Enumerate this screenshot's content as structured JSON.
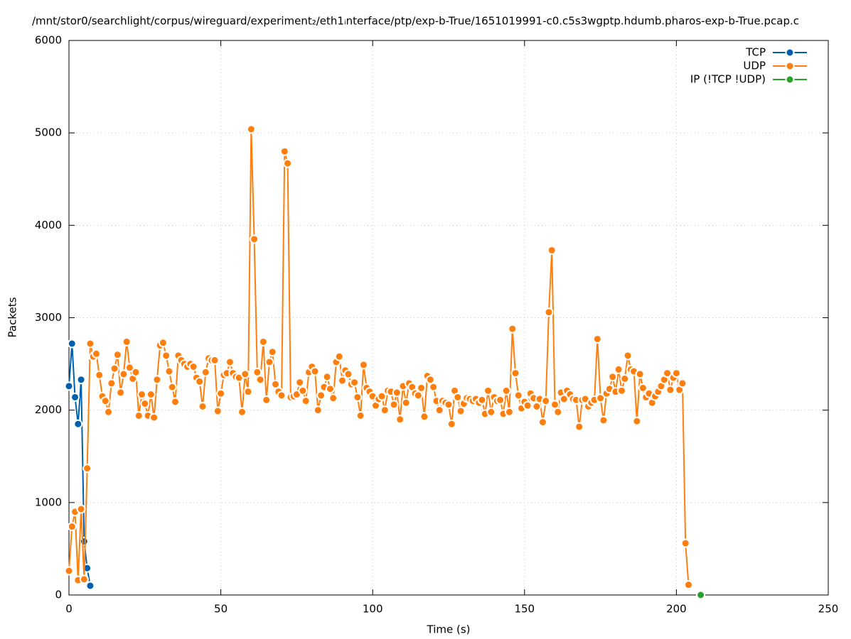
{
  "chart_data": {
    "type": "line",
    "title": "/mnt/stor0/searchlight/corpus/wireguard/experiment₂/eth1ᵢnterface/ptp/exp-b-True/1651019991-c0.c5s3wgptp.hdumb.pharos-exp-b-True.pcap.c",
    "x_label": "Time (s)",
    "y_label": "Packets",
    "xlim": [
      0,
      250
    ],
    "xticks": [
      0,
      50,
      100,
      150,
      200,
      250
    ],
    "ylim": [
      0,
      6000
    ],
    "yticks": [
      0,
      1000,
      2000,
      3000,
      4000,
      5000,
      6000
    ],
    "grid": true,
    "legend": "top-right",
    "series": [
      {
        "name": "TCP",
        "color": "#0060ad",
        "x": [
          0,
          1,
          2,
          3,
          4,
          5,
          6,
          7
        ],
        "values": [
          2260,
          2720,
          2140,
          1850,
          2330,
          580,
          290,
          100
        ]
      },
      {
        "name": "UDP",
        "color": "#ff7f0e",
        "x": [
          0,
          1,
          2,
          3,
          4,
          5,
          6,
          7,
          8,
          9,
          10,
          11,
          12,
          13,
          14,
          15,
          16,
          17,
          18,
          19,
          20,
          21,
          22,
          23,
          24,
          25,
          26,
          27,
          28,
          29,
          30,
          31,
          32,
          33,
          34,
          35,
          36,
          37,
          38,
          39,
          40,
          41,
          42,
          43,
          44,
          45,
          46,
          47,
          48,
          49,
          50,
          51,
          52,
          53,
          54,
          55,
          56,
          57,
          58,
          59,
          60,
          61,
          62,
          63,
          64,
          65,
          66,
          67,
          68,
          69,
          70,
          71,
          72,
          73,
          74,
          75,
          76,
          77,
          78,
          79,
          80,
          81,
          82,
          83,
          84,
          85,
          86,
          87,
          88,
          89,
          90,
          91,
          92,
          93,
          94,
          95,
          96,
          97,
          98,
          99,
          100,
          101,
          102,
          103,
          104,
          105,
          106,
          107,
          108,
          109,
          110,
          111,
          112,
          113,
          114,
          115,
          116,
          117,
          118,
          119,
          120,
          121,
          122,
          123,
          124,
          125,
          126,
          127,
          128,
          129,
          130,
          131,
          132,
          133,
          134,
          135,
          136,
          137,
          138,
          139,
          140,
          141,
          142,
          143,
          144,
          145,
          146,
          147,
          148,
          149,
          150,
          151,
          152,
          153,
          154,
          155,
          156,
          157,
          158,
          159,
          160,
          161,
          162,
          163,
          164,
          165,
          166,
          167,
          168,
          169,
          170,
          171,
          172,
          173,
          174,
          175,
          176,
          177,
          178,
          179,
          180,
          181,
          182,
          183,
          184,
          185,
          186,
          187,
          188,
          189,
          190,
          191,
          192,
          193,
          194,
          195,
          196,
          197,
          198,
          199,
          200,
          201,
          202,
          203,
          204
        ],
        "values": [
          261,
          740,
          900,
          160,
          930,
          170,
          1370,
          2720,
          2580,
          2610,
          2380,
          2150,
          2100,
          1980,
          2290,
          2450,
          2600,
          2190,
          2390,
          2740,
          2460,
          2340,
          2410,
          1940,
          2170,
          2070,
          1940,
          2170,
          1920,
          2330,
          2700,
          2730,
          2590,
          2420,
          2250,
          2090,
          2590,
          2540,
          2500,
          2470,
          2500,
          2470,
          2350,
          2310,
          2040,
          2410,
          2560,
          2540,
          2540,
          1990,
          2180,
          2380,
          2400,
          2520,
          2400,
          2360,
          2350,
          1980,
          2390,
          2200,
          5040,
          3850,
          2410,
          2330,
          2740,
          2110,
          2520,
          2630,
          2280,
          2200,
          2160,
          4800,
          4670,
          2140,
          2150,
          2170,
          2300,
          2210,
          2100,
          2410,
          2470,
          2420,
          2000,
          2160,
          2250,
          2360,
          2230,
          2130,
          2520,
          2580,
          2320,
          2430,
          2390,
          2280,
          2300,
          2140,
          1940,
          2490,
          2240,
          2200,
          2150,
          2050,
          2120,
          2150,
          2000,
          2210,
          2200,
          2060,
          2190,
          1900,
          2260,
          2080,
          2290,
          2250,
          2180,
          2160,
          2240,
          1930,
          2370,
          2330,
          2250,
          2100,
          2000,
          2100,
          2080,
          2060,
          1850,
          2210,
          2140,
          1990,
          2070,
          2130,
          2120,
          2100,
          2120,
          2080,
          2110,
          1960,
          2210,
          1980,
          2140,
          2100,
          2110,
          1960,
          2210,
          1980,
          2880,
          2400,
          2160,
          2020,
          2090,
          2050,
          2180,
          2130,
          2040,
          2120,
          1870,
          2100,
          3060,
          3730,
          2060,
          1980,
          2190,
          2120,
          2210,
          2170,
          2120,
          2110,
          1820,
          2110,
          2120,
          2040,
          2080,
          2110,
          2770,
          2130,
          1890,
          2180,
          2230,
          2360,
          2200,
          2440,
          2210,
          2340,
          2590,
          2440,
          2420,
          1880,
          2390,
          2240,
          2140,
          2180,
          2080,
          2150,
          2200,
          2260,
          2330,
          2400,
          2220,
          2350,
          2400,
          2220,
          2290,
          560,
          110
        ]
      },
      {
        "name": "IP (!TCP  !UDP)",
        "color": "#2ca02c",
        "x": [
          208
        ],
        "values": [
          0
        ]
      }
    ]
  }
}
